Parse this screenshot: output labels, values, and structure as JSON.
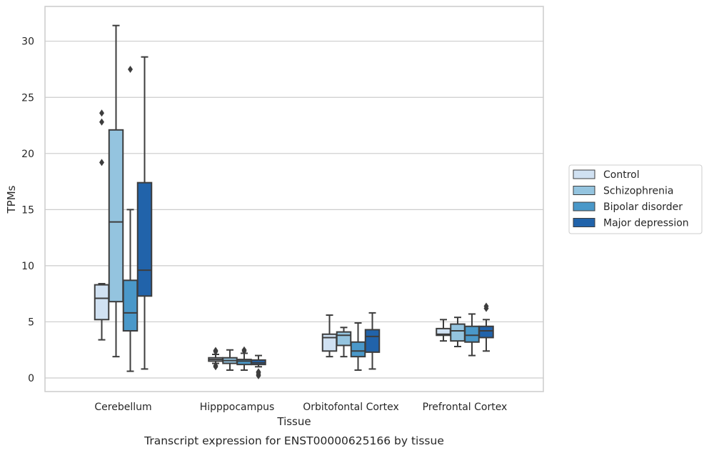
{
  "chart_data": {
    "type": "box",
    "xlabel": "Tissue",
    "ylabel": "TPMs",
    "caption": "Transcript expression for ENST00000625166 by tissue",
    "ylim": [
      -1.2,
      33
    ],
    "yticks": [
      0,
      5,
      10,
      15,
      20,
      25,
      30
    ],
    "grid": "horizontal",
    "legend_position": "right",
    "categories": [
      "Cerebellum",
      "Hipppocampus",
      "Orbitofontal Cortex",
      "Prefrontal Cortex"
    ],
    "series": [
      {
        "name": "Control",
        "color": "#d0e1f2",
        "boxes": [
          {
            "whisker_low": 3.4,
            "q1": 5.2,
            "median": 7.1,
            "q3": 8.3,
            "whisker_high": 8.4,
            "outliers": [
              19.2,
              22.8,
              23.6
            ]
          },
          {
            "whisker_low": 1.3,
            "q1": 1.5,
            "median": 1.65,
            "q3": 1.8,
            "whisker_high": 2.1,
            "outliers": [
              1.0,
              1.1,
              2.35,
              2.45
            ]
          },
          {
            "whisker_low": 1.9,
            "q1": 2.4,
            "median": 3.6,
            "q3": 3.9,
            "whisker_high": 5.6,
            "outliers": []
          },
          {
            "whisker_low": 3.3,
            "q1": 3.8,
            "median": 3.9,
            "q3": 4.4,
            "whisker_high": 5.2,
            "outliers": []
          }
        ]
      },
      {
        "name": "Schizophrenia",
        "color": "#94c4df",
        "boxes": [
          {
            "whisker_low": 1.9,
            "q1": 6.8,
            "median": 13.9,
            "q3": 22.1,
            "whisker_high": 31.4,
            "outliers": []
          },
          {
            "whisker_low": 0.7,
            "q1": 1.3,
            "median": 1.55,
            "q3": 1.8,
            "whisker_high": 2.5,
            "outliers": []
          },
          {
            "whisker_low": 1.9,
            "q1": 2.9,
            "median": 3.8,
            "q3": 4.1,
            "whisker_high": 4.5,
            "outliers": []
          },
          {
            "whisker_low": 2.8,
            "q1": 3.3,
            "median": 4.2,
            "q3": 4.8,
            "whisker_high": 5.4,
            "outliers": []
          }
        ]
      },
      {
        "name": "Bipolar disorder",
        "color": "#4a98c9",
        "boxes": [
          {
            "whisker_low": 0.6,
            "q1": 4.2,
            "median": 5.8,
            "q3": 8.7,
            "whisker_high": 15.0,
            "outliers": [
              27.5
            ]
          },
          {
            "whisker_low": 0.7,
            "q1": 1.2,
            "median": 1.5,
            "q3": 1.65,
            "whisker_high": 2.2,
            "outliers": [
              2.4,
              2.5
            ]
          },
          {
            "whisker_low": 0.7,
            "q1": 1.9,
            "median": 2.4,
            "q3": 3.2,
            "whisker_high": 4.9,
            "outliers": []
          },
          {
            "whisker_low": 2.0,
            "q1": 3.2,
            "median": 3.8,
            "q3": 4.6,
            "whisker_high": 5.7,
            "outliers": []
          }
        ]
      },
      {
        "name": "Major depression",
        "color": "#2163aa",
        "boxes": [
          {
            "whisker_low": 0.8,
            "q1": 7.3,
            "median": 9.6,
            "q3": 17.4,
            "whisker_high": 28.6,
            "outliers": []
          },
          {
            "whisker_low": 1.0,
            "q1": 1.2,
            "median": 1.35,
            "q3": 1.6,
            "whisker_high": 2.0,
            "outliers": [
              0.2,
              0.3,
              0.45,
              0.55
            ]
          },
          {
            "whisker_low": 0.8,
            "q1": 2.3,
            "median": 3.7,
            "q3": 4.3,
            "whisker_high": 5.8,
            "outliers": []
          },
          {
            "whisker_low": 2.4,
            "q1": 3.6,
            "median": 4.2,
            "q3": 4.6,
            "whisker_high": 5.2,
            "outliers": [
              6.2,
              6.4
            ]
          }
        ]
      }
    ]
  }
}
